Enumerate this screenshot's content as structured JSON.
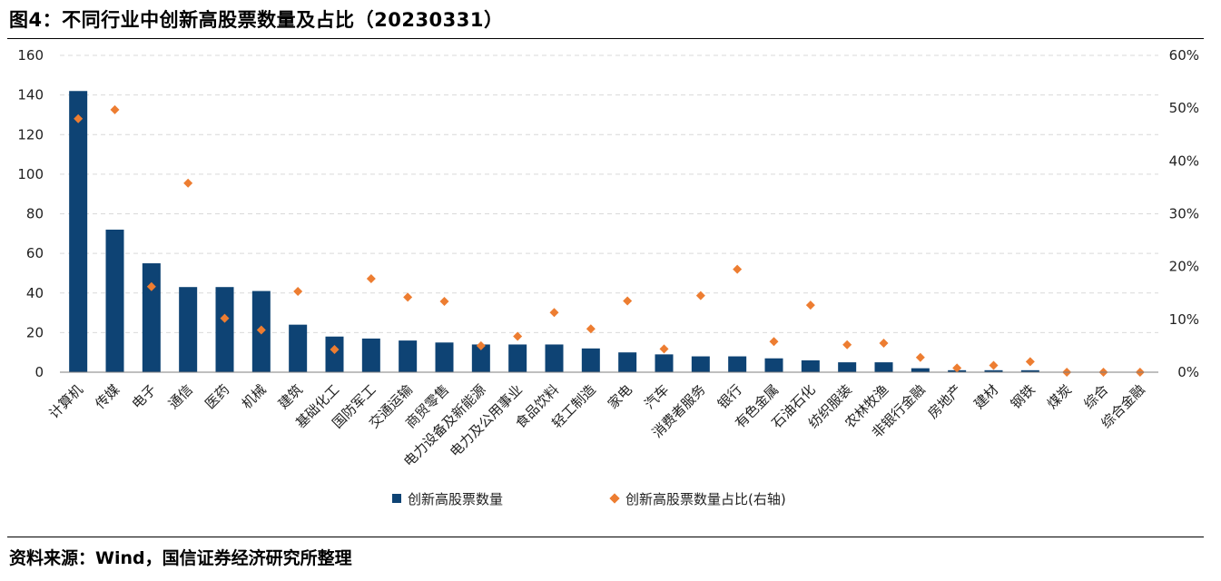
{
  "title": "图4：不同行业中创新高股票数量及占比（20230331）",
  "source": "资料来源：Wind，国信证券经济研究所整理",
  "colors": {
    "bar": "#0E4374",
    "marker": "#ED7D31",
    "grid": "#D9D9D9",
    "axis": "#7F7F7F"
  },
  "chart_data": {
    "type": "bar",
    "categories": [
      "计算机",
      "传媒",
      "电子",
      "通信",
      "医药",
      "机械",
      "建筑",
      "基础化工",
      "国防军工",
      "交通运输",
      "商贸零售",
      "电力设备及新能源",
      "电力及公用事业",
      "食品饮料",
      "轻工制造",
      "家电",
      "汽车",
      "消费者服务",
      "银行",
      "有色金属",
      "石油石化",
      "纺织服装",
      "农林牧渔",
      "非银行金融",
      "房地产",
      "建材",
      "钢铁",
      "煤炭",
      "综合",
      "综合金融"
    ],
    "series": [
      {
        "name": "创新高股票数量",
        "type": "bar",
        "axis": "left",
        "values": [
          142,
          72,
          55,
          43,
          43,
          41,
          24,
          18,
          17,
          16,
          15,
          14,
          14,
          14,
          12,
          10,
          9,
          8,
          8,
          7,
          6,
          5,
          5,
          2,
          1,
          1,
          1,
          0,
          0,
          0
        ]
      },
      {
        "name": "创新高股票数量占比(右轴)",
        "type": "scatter",
        "axis": "right",
        "values": [
          48.0,
          49.7,
          16.2,
          35.8,
          10.2,
          8.0,
          15.3,
          4.3,
          17.7,
          14.2,
          13.4,
          5.0,
          6.8,
          11.3,
          8.2,
          13.5,
          4.4,
          14.5,
          19.5,
          5.8,
          12.7,
          5.2,
          5.5,
          2.8,
          0.8,
          1.3,
          2.0,
          0.0,
          0.0,
          0.0
        ]
      }
    ],
    "y_left": {
      "ylim": [
        0,
        160
      ],
      "ticks": [
        "0",
        "20",
        "40",
        "60",
        "80",
        "100",
        "120",
        "140",
        "160"
      ]
    },
    "y_right": {
      "ylim": [
        0,
        60
      ],
      "ticks": [
        "0%",
        "10%",
        "20%",
        "30%",
        "40%",
        "50%",
        "60%"
      ]
    },
    "grid": true,
    "legend": "bottom"
  }
}
